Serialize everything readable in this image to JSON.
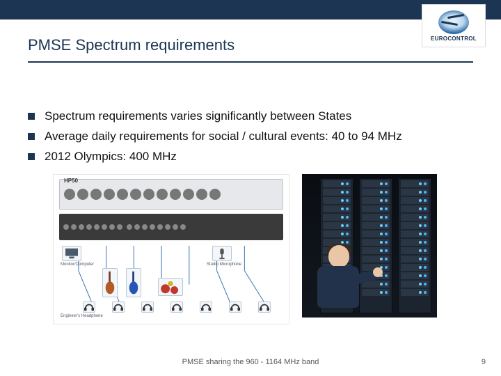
{
  "brand": {
    "name": "EUROCONTROL"
  },
  "title": "PMSE Spectrum requirements",
  "bullets": [
    "Spectrum requirements varies significantly between States",
    "Average daily requirements for social / cultural events: 40 to 94 MHz",
    "2012 Olympics: 400 MHz"
  ],
  "left_image": {
    "rack_label": "HP50",
    "knob_count": 12,
    "jack_count": 16,
    "label_engineer": "Engineer's Headphone",
    "label_monitor": "Monitor/Computer",
    "label_drums": "Drums",
    "label_guitar": "Guitar",
    "label_mic": "Studio Microphone"
  },
  "right_image": {
    "server_columns": 3,
    "units_per_column": 14
  },
  "footer": "PMSE sharing the 960 - 1164 MHz band",
  "page": "9",
  "colors": {
    "brand_dark": "#1b3552",
    "text": "#111111",
    "footer_text": "#555555"
  }
}
